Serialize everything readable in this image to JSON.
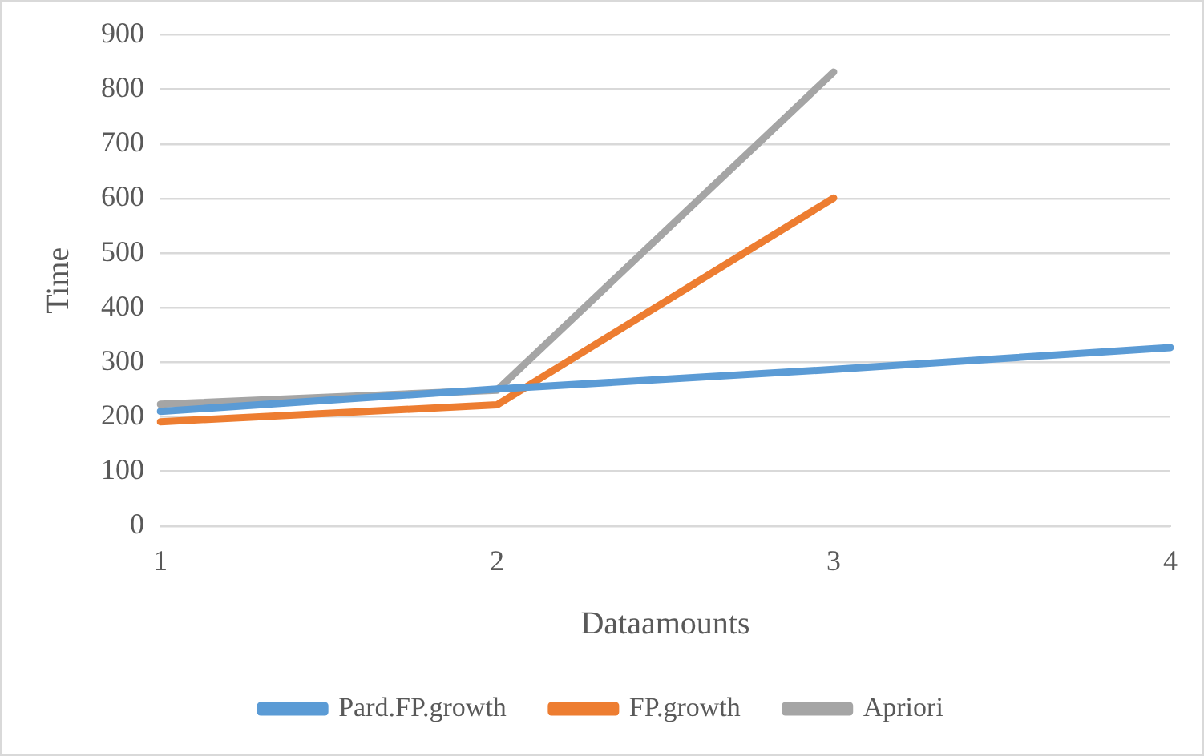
{
  "chart_data": {
    "type": "line",
    "xlabel": "Dataamounts",
    "ylabel": "Time",
    "categories": [
      "1",
      "2",
      "3",
      "4"
    ],
    "series": [
      {
        "name": "Pard.FP.growth",
        "color": "#5b9bd5",
        "values": [
          210,
          251,
          287,
          327
        ]
      },
      {
        "name": "FP.growth",
        "color": "#ed7d31",
        "values": [
          191,
          222,
          601,
          null
        ]
      },
      {
        "name": "Apriori",
        "color": "#a5a5a5",
        "values": [
          223,
          249,
          832,
          null
        ]
      }
    ],
    "ylim": [
      0,
      900
    ],
    "yticks": [
      0,
      100,
      200,
      300,
      400,
      500,
      600,
      700,
      800,
      900
    ],
    "grid": "y",
    "legend": "bottom",
    "marker": "none",
    "line_style": "solid"
  }
}
